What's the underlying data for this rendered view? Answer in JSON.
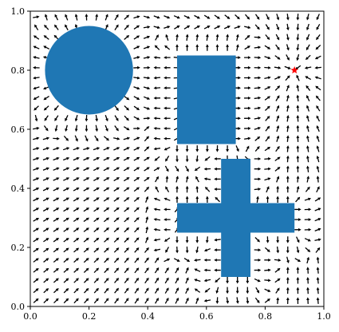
{
  "chart_data": {
    "type": "quiver",
    "title": "",
    "xlabel": "",
    "ylabel": "",
    "xlim": [
      0,
      1
    ],
    "ylim": [
      0,
      1
    ],
    "xticks": [
      "0.0",
      "0.2",
      "0.4",
      "0.6",
      "0.8",
      "1.0"
    ],
    "yticks": [
      "0.0",
      "0.2",
      "0.4",
      "0.6",
      "0.8",
      "1.0"
    ],
    "grid": false,
    "obstacle_color": "#1f77b4",
    "goal_color": "#ff0000",
    "arrow_color": "#000000",
    "goal": {
      "x": 0.9,
      "y": 0.8
    },
    "obstacles": [
      {
        "shape": "circle",
        "cx": 0.2,
        "cy": 0.8,
        "r": 0.15
      },
      {
        "shape": "rect",
        "x0": 0.5,
        "y0": 0.55,
        "x1": 0.7,
        "y1": 0.85
      },
      {
        "shape": "rect",
        "x0": 0.65,
        "y0": 0.1,
        "x1": 0.75,
        "y1": 0.5
      },
      {
        "shape": "rect",
        "x0": 0.5,
        "y0": 0.25,
        "x1": 0.9,
        "y1": 0.35
      }
    ],
    "field": {
      "grid_points": 29,
      "x_range": [
        0.02,
        0.98
      ],
      "y_range": [
        0.02,
        0.98
      ]
    }
  }
}
